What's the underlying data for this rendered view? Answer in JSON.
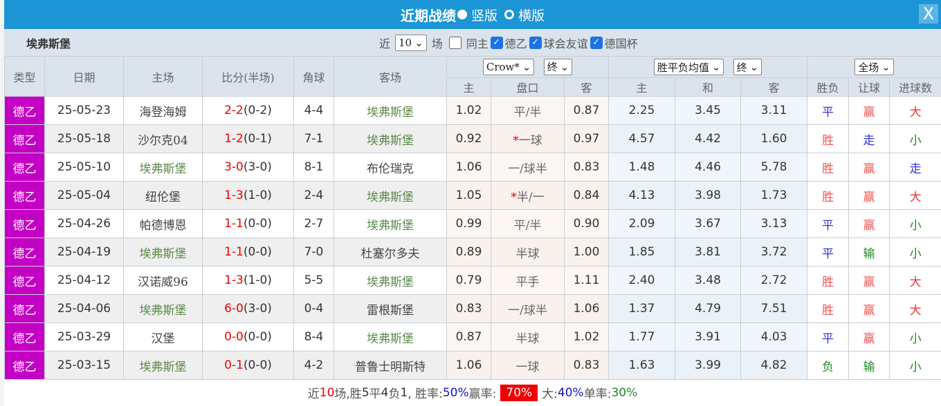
{
  "title": {
    "text": "近期战绩",
    "option1": "竖版",
    "option2": "横版",
    "close": "X"
  },
  "filter": {
    "team": "埃弗斯堡",
    "near": "近",
    "count": "10",
    "unit": "场",
    "same_home": "同主",
    "league1": "德乙",
    "league2": "球会友谊",
    "league3": "德国杯"
  },
  "header": {
    "type": "类型",
    "date": "日期",
    "home": "主场",
    "score": "比分(半场)",
    "corner": "角球",
    "away": "客场",
    "asian_company": "Crow*",
    "asian_stage": "终",
    "euro_type": "胜平负均值",
    "euro_stage": "终",
    "period": "全场",
    "a_home": "主",
    "a_line": "盘口",
    "a_away": "客",
    "e_home": "主",
    "e_draw": "和",
    "e_away": "客",
    "r_wl": "胜负",
    "r_hcp": "让球",
    "r_goals": "进球数"
  },
  "colors": {
    "title_bar": "#1b95d6",
    "league_badge": "#c400c4",
    "highlight_team": "#5a8a4a",
    "score": "#e00000",
    "win_rate_bg": "#e00000"
  },
  "rows": [
    {
      "type": "德乙",
      "date": "25-05-23",
      "home": "海登海姆",
      "score": "2-2",
      "half": "(0-2)",
      "corner": "4-4",
      "away": "埃弗斯堡",
      "hl": "away",
      "ah": "1.02",
      "line": "平/半",
      "aa": "0.87",
      "eh": "2.25",
      "ed": "3.45",
      "ea": "3.11",
      "wl": "平",
      "hcp": "赢",
      "goals": "大"
    },
    {
      "type": "德乙",
      "date": "25-05-18",
      "home": "沙尔克04",
      "score": "1-2",
      "half": "(0-1)",
      "corner": "7-1",
      "away": "埃弗斯堡",
      "hl": "away",
      "ah": "0.92",
      "line": "*一球",
      "aa": "0.97",
      "eh": "4.57",
      "ed": "4.42",
      "ea": "1.60",
      "wl": "胜",
      "hcp": "走",
      "goals": "小"
    },
    {
      "type": "德乙",
      "date": "25-05-10",
      "home": "埃弗斯堡",
      "score": "3-0",
      "half": "(3-0)",
      "corner": "8-1",
      "away": "布伦瑞克",
      "hl": "home",
      "ah": "1.06",
      "line": "一/球半",
      "aa": "0.83",
      "eh": "1.48",
      "ed": "4.46",
      "ea": "5.78",
      "wl": "胜",
      "hcp": "赢",
      "goals": "走"
    },
    {
      "type": "德乙",
      "date": "25-05-04",
      "home": "纽伦堡",
      "score": "1-3",
      "half": "(1-0)",
      "corner": "2-4",
      "away": "埃弗斯堡",
      "hl": "away",
      "ah": "1.05",
      "line": "*半/一",
      "aa": "0.84",
      "eh": "4.13",
      "ed": "3.98",
      "ea": "1.73",
      "wl": "胜",
      "hcp": "赢",
      "goals": "大"
    },
    {
      "type": "德乙",
      "date": "25-04-26",
      "home": "帕德博恩",
      "score": "1-1",
      "half": "(0-0)",
      "corner": "2-7",
      "away": "埃弗斯堡",
      "hl": "away",
      "ah": "0.99",
      "line": "平/半",
      "aa": "0.90",
      "eh": "2.09",
      "ed": "3.67",
      "ea": "3.13",
      "wl": "平",
      "hcp": "赢",
      "goals": "小"
    },
    {
      "type": "德乙",
      "date": "25-04-19",
      "home": "埃弗斯堡",
      "score": "1-1",
      "half": "(0-0)",
      "corner": "7-0",
      "away": "杜塞尔多夫",
      "hl": "home",
      "ah": "0.89",
      "line": "半球",
      "aa": "1.00",
      "eh": "1.85",
      "ed": "3.81",
      "ea": "3.72",
      "wl": "平",
      "hcp": "输",
      "goals": "小"
    },
    {
      "type": "德乙",
      "date": "25-04-12",
      "home": "汉诺威96",
      "score": "1-3",
      "half": "(1-0)",
      "corner": "5-5",
      "away": "埃弗斯堡",
      "hl": "away",
      "ah": "0.79",
      "line": "平手",
      "aa": "1.11",
      "eh": "2.40",
      "ed": "3.48",
      "ea": "2.72",
      "wl": "胜",
      "hcp": "赢",
      "goals": "大"
    },
    {
      "type": "德乙",
      "date": "25-04-06",
      "home": "埃弗斯堡",
      "score": "6-0",
      "half": "(3-0)",
      "corner": "0-4",
      "away": "雷根斯堡",
      "hl": "home",
      "ah": "0.83",
      "line": "一/球半",
      "aa": "1.06",
      "eh": "1.37",
      "ed": "4.79",
      "ea": "7.51",
      "wl": "胜",
      "hcp": "赢",
      "goals": "大"
    },
    {
      "type": "德乙",
      "date": "25-03-29",
      "home": "汉堡",
      "score": "0-0",
      "half": "(0-0)",
      "corner": "8-4",
      "away": "埃弗斯堡",
      "hl": "away",
      "ah": "0.87",
      "line": "半球",
      "aa": "1.02",
      "eh": "1.77",
      "ed": "3.91",
      "ea": "4.03",
      "wl": "平",
      "hcp": "赢",
      "goals": "小"
    },
    {
      "type": "德乙",
      "date": "25-03-15",
      "home": "埃弗斯堡",
      "score": "0-1",
      "half": "(0-0)",
      "corner": "4-2",
      "away": "普鲁士明斯特",
      "hl": "home",
      "ah": "1.06",
      "line": "一球",
      "aa": "0.83",
      "eh": "1.63",
      "ed": "3.99",
      "ea": "4.82",
      "wl": "负",
      "hcp": "输",
      "goals": "小"
    }
  ],
  "footer": {
    "p1": "近",
    "n": "10",
    "p2": "场,胜",
    "w": "5",
    "p3": "平",
    "d": "4",
    "p4": "负",
    "l": "1",
    "p5": ", 胜率:",
    "win_rate": "50%",
    "p6": " 赢率:",
    "cover_rate": "70%",
    "p7": "大:",
    "over_rate": "40%",
    "p8": " 单率:",
    "odd_rate": "30%"
  }
}
